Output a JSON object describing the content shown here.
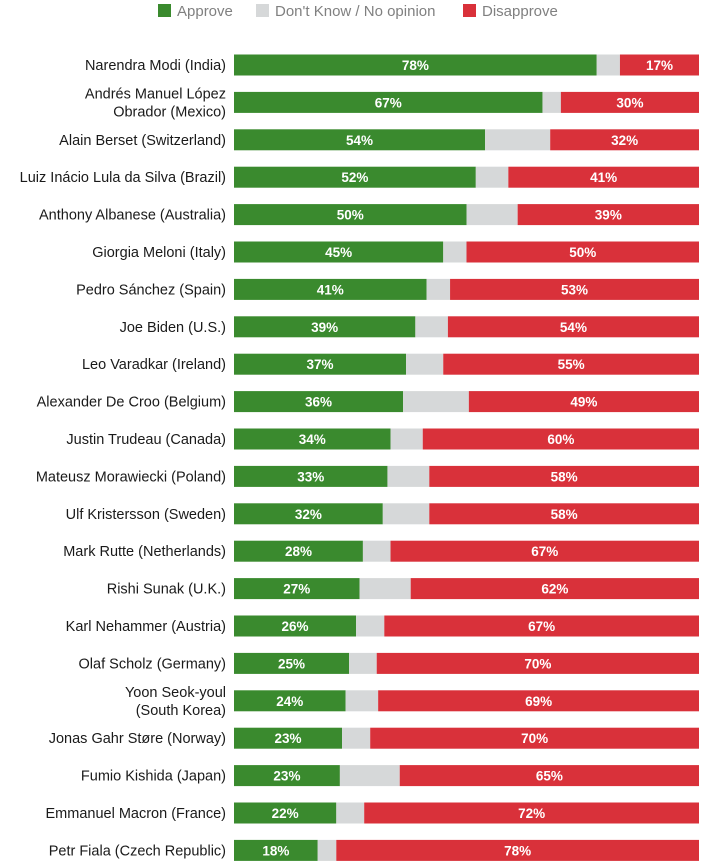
{
  "chart_data": {
    "type": "bar",
    "orientation": "horizontal",
    "stacked": true,
    "normalized": true,
    "title": "",
    "xlabel": "",
    "ylabel": "",
    "grid": false,
    "legend_position": "top",
    "colors": {
      "Approve": "#3a8a2e",
      "Don't Know / No opinion": "#d6d8d9",
      "Disapprove": "#d9313a"
    },
    "categories": [
      "Narendra Modi (India)",
      "Andrés Manuel López Obrador (Mexico)",
      "Alain Berset (Switzerland)",
      "Luiz Inácio Lula da Silva (Brazil)",
      "Anthony Albanese (Australia)",
      "Giorgia Meloni (Italy)",
      "Pedro Sánchez (Spain)",
      "Joe Biden (U.S.)",
      "Leo Varadkar (Ireland)",
      "Alexander De Croo (Belgium)",
      "Justin Trudeau (Canada)",
      "Mateusz Morawiecki (Poland)",
      "Ulf Kristersson (Sweden)",
      "Mark Rutte (Netherlands)",
      "Rishi Sunak (U.K.)",
      "Karl Nehammer (Austria)",
      "Olaf Scholz (Germany)",
      "Yoon Seok-youl (South Korea)",
      "Jonas Gahr Støre (Norway)",
      "Fumio Kishida (Japan)",
      "Emmanuel Macron (France)",
      "Petr Fiala (Czech Republic)"
    ],
    "category_lines": [
      [
        "Narendra Modi (India)"
      ],
      [
        "Andrés Manuel López",
        "Obrador (Mexico)"
      ],
      [
        "Alain Berset (Switzerland)"
      ],
      [
        "Luiz Inácio Lula da Silva (Brazil)"
      ],
      [
        "Anthony Albanese (Australia)"
      ],
      [
        "Giorgia Meloni (Italy)"
      ],
      [
        "Pedro Sánchez (Spain)"
      ],
      [
        "Joe Biden (U.S.)"
      ],
      [
        "Leo Varadkar (Ireland)"
      ],
      [
        "Alexander De Croo (Belgium)"
      ],
      [
        "Justin Trudeau (Canada)"
      ],
      [
        "Mateusz Morawiecki (Poland)"
      ],
      [
        "Ulf Kristersson (Sweden)"
      ],
      [
        "Mark Rutte (Netherlands)"
      ],
      [
        "Rishi Sunak (U.K.)"
      ],
      [
        "Karl Nehammer (Austria)"
      ],
      [
        "Olaf Scholz (Germany)"
      ],
      [
        "Yoon Seok-youl",
        "(South Korea)"
      ],
      [
        "Jonas Gahr Støre (Norway)"
      ],
      [
        "Fumio Kishida (Japan)"
      ],
      [
        "Emmanuel Macron (France)"
      ],
      [
        "Petr Fiala (Czech Republic)"
      ]
    ],
    "series": [
      {
        "name": "Approve",
        "values": [
          78,
          67,
          54,
          52,
          50,
          45,
          41,
          39,
          37,
          36,
          34,
          33,
          32,
          28,
          27,
          26,
          25,
          24,
          23,
          23,
          22,
          18
        ]
      },
      {
        "name": "Don't Know / No opinion",
        "values": [
          5,
          4,
          14,
          7,
          11,
          5,
          5,
          7,
          8,
          14,
          7,
          9,
          10,
          6,
          11,
          6,
          6,
          7,
          6,
          13,
          6,
          4
        ]
      },
      {
        "name": "Disapprove",
        "values": [
          17,
          30,
          32,
          41,
          39,
          50,
          53,
          54,
          55,
          49,
          60,
          58,
          58,
          67,
          62,
          67,
          70,
          69,
          70,
          65,
          72,
          78
        ]
      }
    ],
    "data_labels": {
      "Approve": [
        "78%",
        "67%",
        "54%",
        "52%",
        "50%",
        "45%",
        "41%",
        "39%",
        "37%",
        "36%",
        "34%",
        "33%",
        "32%",
        "28%",
        "27%",
        "26%",
        "25%",
        "24%",
        "23%",
        "23%",
        "22%",
        "18%"
      ],
      "Disapprove": [
        "17%",
        "30%",
        "32%",
        "41%",
        "39%",
        "50%",
        "53%",
        "54%",
        "55%",
        "49%",
        "60%",
        "58%",
        "58%",
        "67%",
        "62%",
        "67%",
        "70%",
        "69%",
        "70%",
        "65%",
        "72%",
        "78%"
      ]
    }
  }
}
